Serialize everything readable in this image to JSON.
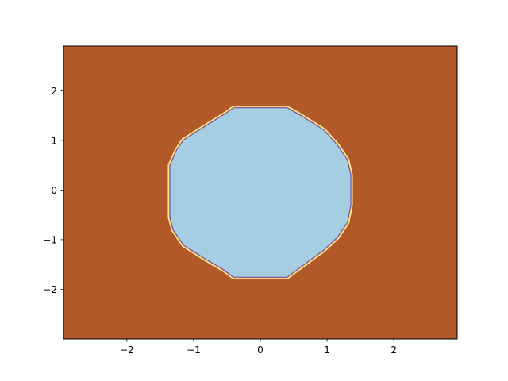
{
  "chart_data": {
    "type": "heatmap",
    "title": "",
    "xlabel": "",
    "ylabel": "",
    "xlim": [
      -2.95,
      2.95
    ],
    "ylim": [
      -3.0,
      2.9
    ],
    "xticks": [
      -2,
      -1,
      0,
      1,
      2
    ],
    "yticks": [
      -2,
      -1,
      0,
      1,
      2
    ],
    "xtick_labels": [
      "−2",
      "−1",
      "0",
      "1",
      "2"
    ],
    "ytick_labels": [
      "−2",
      "−1",
      "0",
      "1",
      "2"
    ],
    "grid": false,
    "legend": "none",
    "regions": [
      {
        "label": "outside",
        "color": "#b15928"
      },
      {
        "label": "inside",
        "color": "#a6cee3"
      }
    ],
    "boundary_colors": [
      "#ffff99",
      "#fdbf6f",
      "#6a3d9a"
    ],
    "inside_polygon": [
      [
        -0.4,
        1.65
      ],
      [
        0.4,
        1.65
      ],
      [
        0.6,
        1.5
      ],
      [
        0.95,
        1.2
      ],
      [
        1.15,
        0.9
      ],
      [
        1.3,
        0.6
      ],
      [
        1.35,
        0.3
      ],
      [
        1.35,
        -0.3
      ],
      [
        1.3,
        -0.65
      ],
      [
        1.15,
        -0.95
      ],
      [
        0.95,
        -1.2
      ],
      [
        0.65,
        -1.5
      ],
      [
        0.4,
        -1.75
      ],
      [
        -0.4,
        -1.75
      ],
      [
        -0.55,
        -1.6
      ],
      [
        -0.8,
        -1.4
      ],
      [
        -1.15,
        -1.1
      ],
      [
        -1.3,
        -0.8
      ],
      [
        -1.35,
        -0.55
      ],
      [
        -1.35,
        0.5
      ],
      [
        -1.25,
        0.8
      ],
      [
        -1.15,
        1.0
      ],
      [
        -0.8,
        1.3
      ],
      [
        -0.5,
        1.55
      ]
    ]
  }
}
